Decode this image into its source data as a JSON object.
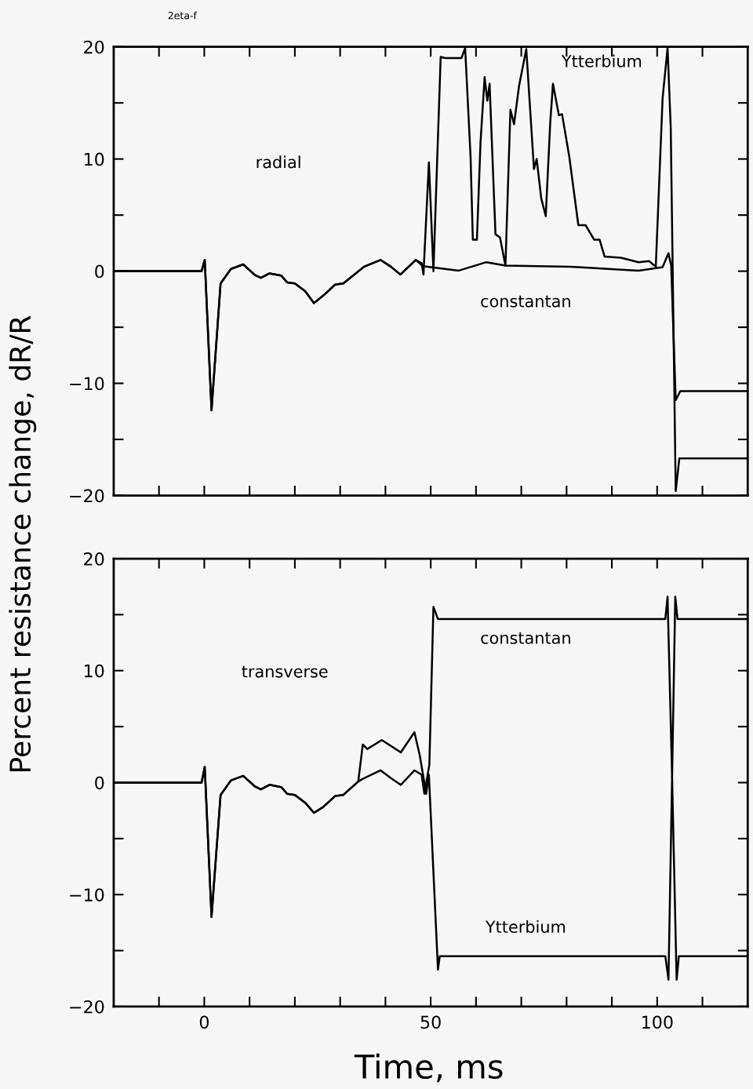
{
  "chart_data": [
    {
      "type": "line",
      "ylabel": "Percent resistance change, dR/R",
      "annotations": [
        "2eta-f",
        "radial"
      ],
      "xlim": [
        -20,
        120
      ],
      "ylim": [
        -20,
        20
      ],
      "xticks": [
        {
          "value": -10,
          "label": null
        },
        {
          "value": 0,
          "label": null
        },
        {
          "value": 10,
          "label": null
        },
        {
          "value": 20,
          "label": null
        },
        {
          "value": 30,
          "label": null
        },
        {
          "value": 40,
          "label": null
        },
        {
          "value": 50,
          "label": null
        },
        {
          "value": 60,
          "label": null
        },
        {
          "value": 70,
          "label": null
        },
        {
          "value": 80,
          "label": null
        },
        {
          "value": 90,
          "label": null
        },
        {
          "value": 100,
          "label": null
        },
        {
          "value": 110,
          "label": null
        }
      ],
      "yticks": [
        -20,
        {
          "value": -15,
          "label": null
        },
        -10,
        {
          "value": -5,
          "label": null
        },
        0,
        {
          "value": 5,
          "label": null
        },
        10,
        {
          "value": 15,
          "label": null
        },
        20
      ],
      "tick_labels": "y",
      "grid": false,
      "series": [
        {
          "name": "Ytterbium",
          "color": "#000000",
          "x": [
            -20,
            -0.6,
            0.1,
            1.6,
            3.6,
            5.9,
            8.6,
            11.2,
            12.5,
            14.4,
            17.0,
            18.3,
            20.0,
            22.3,
            24.2,
            26.2,
            28.9,
            30.7,
            35.3,
            38.9,
            41.2,
            43.3,
            46.7,
            48.0,
            48.4,
            49.6,
            50.6,
            52.2,
            53.2,
            56.8,
            57.6,
            58.8,
            59.3,
            60.2,
            61.0,
            61.9,
            62.5,
            63.0,
            64.3,
            65.3,
            66.5,
            67.6,
            68.4,
            69.5,
            71.1,
            72.8,
            73.4,
            74.4,
            75.4,
            76.4,
            77.0,
            78.3,
            79.0,
            80.6,
            82.6,
            84.2,
            86.1,
            87.3,
            88.4,
            92.0,
            95.9,
            98.2,
            99.7,
            101.2,
            102.3,
            103.0,
            104.1,
            104.9,
            120
          ],
          "values": [
            0,
            0,
            1.0,
            -12.4,
            -1.1,
            0.2,
            0.6,
            -0.35,
            -0.6,
            -0.2,
            -0.4,
            -1.0,
            -1.1,
            -1.8,
            -2.85,
            -2.2,
            -1.2,
            -1.1,
            0.4,
            1.0,
            0.4,
            -0.3,
            1.0,
            0.7,
            -0.3,
            9.7,
            0,
            19.1,
            19.0,
            19.0,
            19.9,
            10.2,
            2.8,
            2.8,
            11.5,
            17.3,
            15.2,
            16.7,
            3.3,
            3.0,
            0.5,
            14.4,
            13.1,
            16.5,
            19.8,
            9.1,
            10.0,
            6.5,
            4.9,
            13.3,
            16.7,
            13.9,
            14.0,
            10.2,
            4.1,
            4.1,
            2.8,
            2.8,
            1.3,
            1.2,
            0.8,
            0.9,
            0.4,
            15.4,
            19.9,
            12.8,
            -19.6,
            -16.7,
            -16.7
          ]
        },
        {
          "name": "constantan",
          "color": "#000000",
          "x": [
            -20,
            -0.6,
            0.1,
            1.6,
            3.6,
            5.9,
            8.6,
            11.2,
            12.5,
            14.4,
            17.0,
            18.3,
            20.0,
            22.3,
            24.2,
            26.2,
            28.9,
            30.7,
            35.3,
            38.9,
            41.2,
            43.3,
            46.7,
            47.0,
            48.3,
            56.2,
            62.3,
            66.5,
            80.9,
            95.9,
            101.2,
            102.5,
            103.1,
            104.1,
            105.1,
            120
          ],
          "values": [
            0,
            0,
            1.0,
            -12.4,
            -1.1,
            0.2,
            0.6,
            -0.35,
            -0.6,
            -0.2,
            -0.4,
            -1.0,
            -1.1,
            -1.8,
            -2.85,
            -2.2,
            -1.2,
            -1.1,
            0.4,
            1.0,
            0.4,
            -0.3,
            1.0,
            0.9,
            0.45,
            0.05,
            0.8,
            0.5,
            0.4,
            0.05,
            0.35,
            1.6,
            0.5,
            -11.5,
            -10.7,
            -10.7
          ]
        }
      ]
    },
    {
      "type": "line",
      "xlabel": "Time, ms",
      "annotations": [
        "transverse"
      ],
      "xlim": [
        -20,
        120
      ],
      "ylim": [
        -20,
        20
      ],
      "xticks": [
        {
          "value": -10,
          "label": null
        },
        0,
        {
          "value": 10,
          "label": null
        },
        {
          "value": 20,
          "label": null
        },
        {
          "value": 30,
          "label": null
        },
        {
          "value": 40,
          "label": null
        },
        50,
        {
          "value": 60,
          "label": null
        },
        {
          "value": 70,
          "label": null
        },
        {
          "value": 80,
          "label": null
        },
        {
          "value": 90,
          "label": null
        },
        100,
        {
          "value": 110,
          "label": null
        }
      ],
      "yticks": [
        -20,
        {
          "value": -15,
          "label": null
        },
        -10,
        {
          "value": -5,
          "label": null
        },
        0,
        {
          "value": 5,
          "label": null
        },
        10,
        {
          "value": 15,
          "label": null
        },
        20
      ],
      "grid": false,
      "series": [
        {
          "name": "constantan",
          "color": "#000000",
          "x": [
            -20,
            -0.6,
            0.1,
            1.6,
            3.6,
            5.9,
            8.6,
            11.2,
            12.5,
            14.4,
            17.0,
            18.3,
            20.0,
            22.3,
            24.2,
            26.2,
            28.9,
            30.7,
            34.0,
            35.3,
            38.9,
            41.2,
            43.4,
            46.4,
            48.0,
            48.6,
            49.7,
            50.6,
            51.6,
            101.8,
            102.3,
            103.3,
            104.0,
            104.5,
            120
          ],
          "values": [
            0,
            0,
            1.4,
            -12.0,
            -1.1,
            0.2,
            0.6,
            -0.35,
            -0.6,
            -0.2,
            -0.4,
            -1.0,
            -1.1,
            -1.8,
            -2.7,
            -2.2,
            -1.2,
            -1.1,
            0.1,
            0.4,
            1.1,
            0.4,
            -0.2,
            1.1,
            0.7,
            -1.0,
            1.6,
            15.7,
            14.6,
            14.6,
            16.6,
            0.5,
            16.6,
            14.6,
            14.6
          ]
        },
        {
          "name": "Ytterbium",
          "color": "#000000",
          "x": [
            -20,
            -0.6,
            0.1,
            1.6,
            3.6,
            5.9,
            8.6,
            11.2,
            12.5,
            14.4,
            17.0,
            18.3,
            20.0,
            22.3,
            24.2,
            26.2,
            28.9,
            30.7,
            34.0,
            35.0,
            36.0,
            39.2,
            43.4,
            46.4,
            47.6,
            49.0,
            49.6,
            51.6,
            52.0,
            101.8,
            102.5,
            103.3,
            104.3,
            104.8,
            120
          ],
          "values": [
            0,
            0,
            1.4,
            -12.0,
            -1.1,
            0.2,
            0.6,
            -0.35,
            -0.6,
            -0.2,
            -0.4,
            -1.0,
            -1.1,
            -1.8,
            -2.7,
            -2.2,
            -1.2,
            -1.1,
            0.1,
            3.4,
            3.0,
            3.8,
            2.7,
            4.5,
            2.4,
            -1.0,
            0.7,
            -16.7,
            -15.5,
            -15.5,
            -17.6,
            0.5,
            -17.6,
            -15.5,
            -15.5
          ]
        }
      ]
    }
  ]
}
